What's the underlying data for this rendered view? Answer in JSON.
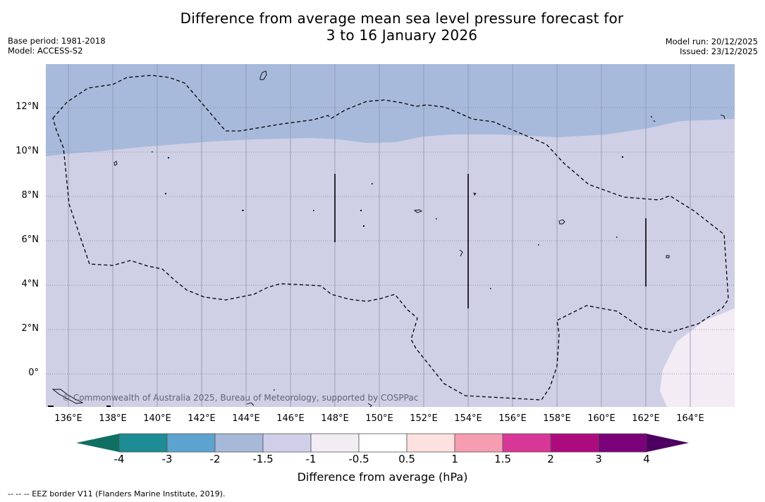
{
  "title": {
    "line1": "Difference from average mean sea level pressure forecast for",
    "line2": "3 to 16 January 2026"
  },
  "meta_left": {
    "base_period": "Base period: 1981-2018",
    "model": "Model: ACCESS-S2"
  },
  "meta_right": {
    "model_run": "Model run: 20/12/2025",
    "issued": "Issued: 23/12/2025"
  },
  "map": {
    "latitude_labels": [
      "12°N",
      "10°N",
      "8°N",
      "6°N",
      "4°N",
      "2°N",
      "0°"
    ],
    "longitude_labels": [
      "136°E",
      "138°E",
      "140°E",
      "142°E",
      "144°E",
      "146°E",
      "148°E",
      "150°E",
      "152°E",
      "154°E",
      "156°E",
      "158°E",
      "160°E",
      "162°E",
      "164°E"
    ],
    "copyright": "© Commonwealth of Australia 2025, Bureau of Meteorology, supported by COSPPac"
  },
  "colorbar": {
    "ticks": [
      "-4",
      "-3",
      "-2",
      "-1.5",
      "-1",
      "-0.5",
      "0.5",
      "1",
      "1.5",
      "2",
      "3",
      "4"
    ],
    "colors": [
      "#1e8c94",
      "#5da3cf",
      "#a6b9d9",
      "#cfd0e7",
      "#f4ecf5",
      "#ffffff",
      "#fde0e0",
      "#f69db1",
      "#d93797",
      "#ae0a7f",
      "#7a0177"
    ],
    "under_color": "#0f6f63",
    "over_color": "#4d0060",
    "label": "Difference from average (hPa)"
  },
  "footnote": "-- -- -- EEZ border V11 (Flanders Marine Institute, 2019)."
}
